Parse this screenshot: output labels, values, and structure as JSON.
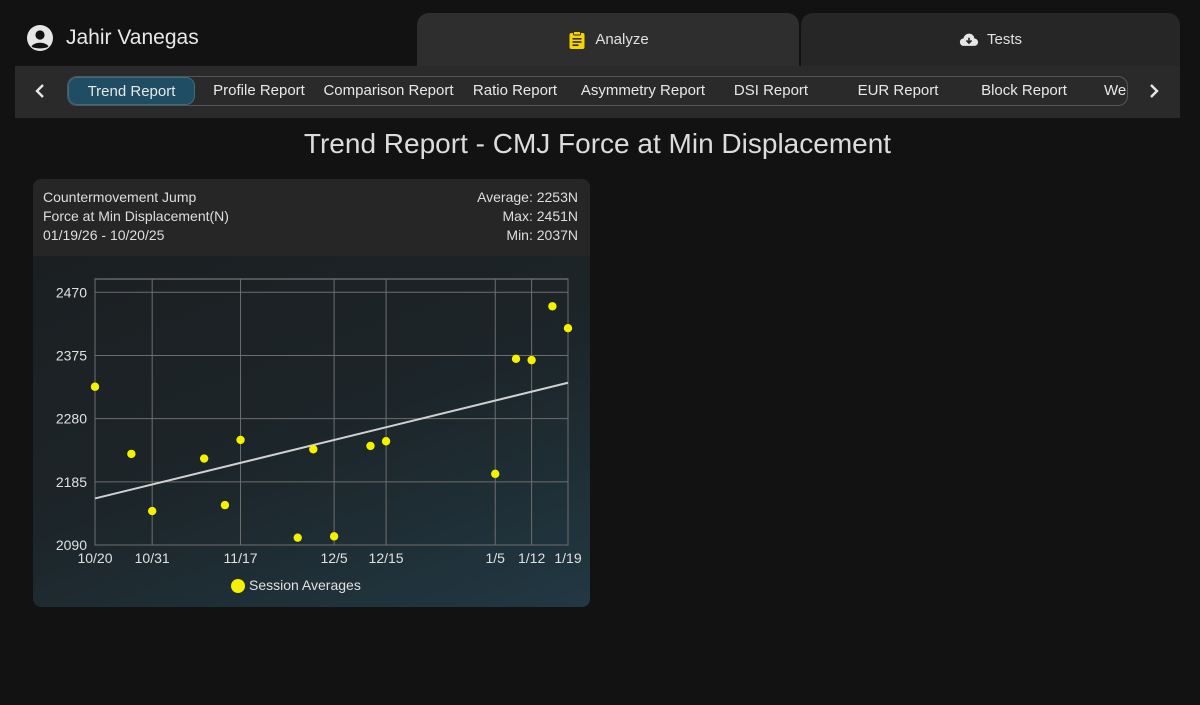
{
  "user": {
    "name": "Jahir Vanegas"
  },
  "top_tabs": [
    {
      "label": "Analyze",
      "icon": "clipboard-icon"
    },
    {
      "label": "Tests",
      "icon": "cloud-download-icon"
    }
  ],
  "reports": {
    "items": [
      "Trend Report",
      "Profile Report",
      "Comparison Report",
      "Ratio Report",
      "Asymmetry Report",
      "DSI Report",
      "EUR Report",
      "Block Report",
      "Weekly Report"
    ],
    "active": "Trend Report"
  },
  "page_title": "Trend Report - CMJ Force at Min Displacement",
  "card": {
    "test_name": "Countermovement Jump",
    "metric": "Force at Min Displacement(N)",
    "date_range": "01/19/26 - 10/20/25",
    "average": "Average: 2253N",
    "max": "Max: 2451N",
    "min": "Min: 2037N"
  },
  "colors": {
    "accent": "#1f4d63",
    "point": "#f5f200",
    "trend": "#d0d0d0"
  },
  "chart_data": {
    "type": "scatter",
    "title": "Countermovement Jump - Force at Min Displacement(N)",
    "ylabel": "Force at Min Displacement(N)",
    "ylim": [
      2090,
      2490
    ],
    "yticks": [
      2090,
      2185,
      2280,
      2375,
      2470
    ],
    "xlim": [
      0,
      91
    ],
    "xticks": [
      {
        "day": 0,
        "label": "10/20"
      },
      {
        "day": 11,
        "label": "10/31"
      },
      {
        "day": 28,
        "label": "11/17"
      },
      {
        "day": 46,
        "label": "12/5"
      },
      {
        "day": 56,
        "label": "12/15"
      },
      {
        "day": 77,
        "label": "1/5"
      },
      {
        "day": 84,
        "label": "1/12"
      },
      {
        "day": 91,
        "label": "1/19"
      }
    ],
    "series": [
      {
        "name": "Session Averages",
        "points": [
          {
            "day": 0,
            "value": 2328
          },
          {
            "day": 7,
            "value": 2227
          },
          {
            "day": 11,
            "value": 2141
          },
          {
            "day": 21,
            "value": 2220
          },
          {
            "day": 25,
            "value": 2150
          },
          {
            "day": 28,
            "value": 2248
          },
          {
            "day": 39,
            "value": 2101
          },
          {
            "day": 42,
            "value": 2234
          },
          {
            "day": 46,
            "value": 2103
          },
          {
            "day": 53,
            "value": 2239
          },
          {
            "day": 56,
            "value": 2246
          },
          {
            "day": 77,
            "value": 2197
          },
          {
            "day": 81,
            "value": 2370
          },
          {
            "day": 84,
            "value": 2368
          },
          {
            "day": 88,
            "value": 2449
          },
          {
            "day": 91,
            "value": 2416
          }
        ]
      }
    ],
    "trendline": {
      "start": {
        "day": 0,
        "value": 2160
      },
      "end": {
        "day": 91,
        "value": 2334
      }
    },
    "legend": {
      "label": "Session Averages",
      "position": "bottom"
    },
    "grid": true
  }
}
